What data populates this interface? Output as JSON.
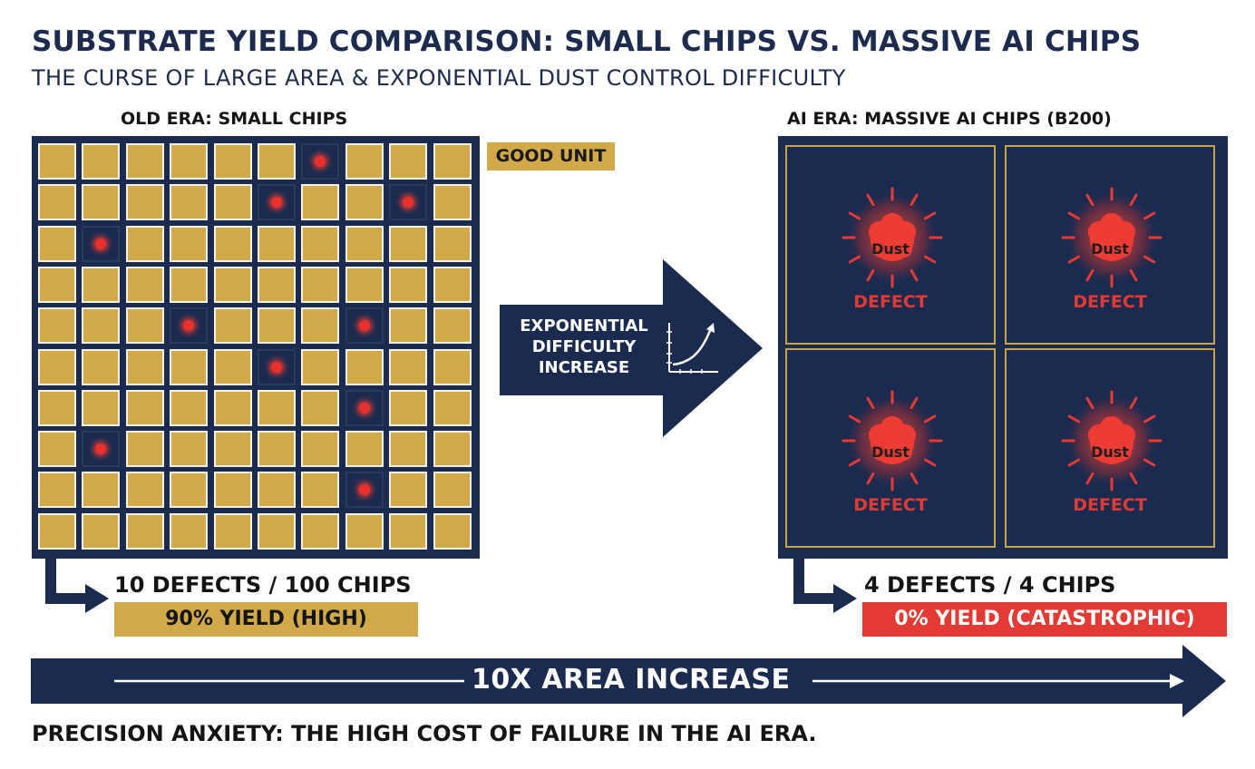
{
  "title": "SUBSTRATE YIELD COMPARISON: SMALL CHIPS VS. MASSIVE AI CHIPS",
  "subtitle": "THE CURSE OF LARGE AREA & EXPONENTIAL DUST CONTROL DIFFICULTY",
  "left_panel": {
    "label": "OLD ERA: SMALL CHIPS",
    "legend_good": "GOOD UNIT",
    "rows": 10,
    "cols": 10,
    "defect_cells": [
      [
        0,
        6
      ],
      [
        1,
        5
      ],
      [
        1,
        8
      ],
      [
        2,
        1
      ],
      [
        4,
        3
      ],
      [
        4,
        7
      ],
      [
        5,
        5
      ],
      [
        6,
        7
      ],
      [
        7,
        1
      ],
      [
        8,
        7
      ]
    ],
    "count_text": "10 DEFECTS / 100 CHIPS",
    "yield_text": "90% YIELD (HIGH)"
  },
  "middle": {
    "line1": "EXPONENTIAL",
    "line2": "DIFFICULTY",
    "line3": "INCREASE"
  },
  "right_panel": {
    "label": "AI ERA: MASSIVE AI CHIPS (B200)",
    "chips": [
      {
        "dust": "Dust",
        "defect": "DEFECT"
      },
      {
        "dust": "Dust",
        "defect": "DEFECT"
      },
      {
        "dust": "Dust",
        "defect": "DEFECT"
      },
      {
        "dust": "Dust",
        "defect": "DEFECT"
      }
    ],
    "count_text": "4 DEFECTS / 4 CHIPS",
    "yield_text": "0% YIELD (CATASTROPHIC)"
  },
  "area_arrow_text": "10X AREA INCREASE",
  "footer": "PRECISION ANXIETY: THE HIGH COST OF FAILURE IN THE AI ERA.",
  "colors": {
    "navy": "#1b2b50",
    "gold": "#d1a948",
    "red": "#e43a35"
  }
}
